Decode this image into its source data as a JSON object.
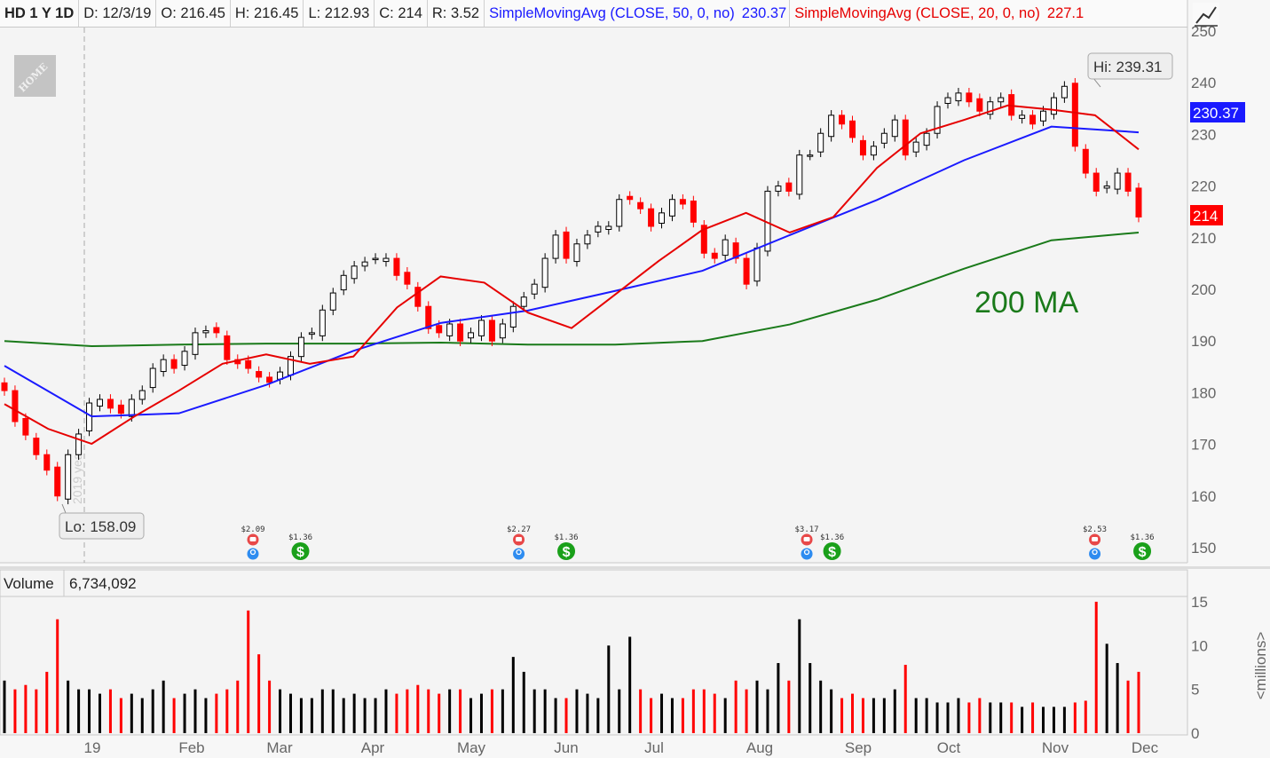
{
  "header": {
    "symbol": "HD 1 Y 1D",
    "date": "D: 12/3/19",
    "open": "O: 216.45",
    "high": "H: 216.45",
    "low": "L: 212.93",
    "close": "C: 214",
    "range": "R: 3.52",
    "sma50_label": "SimpleMovingAvg (CLOSE, 50, 0, no)",
    "sma50_value": "230.37",
    "sma20_label": "SimpleMovingAvg (CLOSE, 20, 0, no)",
    "sma20_value": "227.1"
  },
  "logo_text": "THE HOME DEPOT",
  "chart_data": [
    {
      "type": "candlestick",
      "symbol": "HD",
      "period": "1 Y",
      "interval": "1D",
      "x_range": [
        "2018-12-04",
        "2019-12-03"
      ],
      "ylim": [
        150,
        250
      ],
      "y_ticks": [
        150,
        160,
        170,
        180,
        190,
        200,
        210,
        220,
        230,
        240,
        250
      ],
      "x_tick_labels": [
        "19",
        "Feb",
        "Mar",
        "Apr",
        "May",
        "Jun",
        "Jul",
        "Aug",
        "Sep",
        "Oct",
        "Nov",
        "Dec"
      ],
      "grid": false,
      "close": [
        180.4,
        174.4,
        171.8,
        168,
        165,
        160,
        168,
        172,
        178,
        178.7,
        177,
        176,
        178.7,
        180.4,
        184.7,
        186.4,
        184.7,
        188,
        191.6,
        192,
        191.6,
        186.4,
        185.6,
        184.7,
        183,
        182,
        184,
        187,
        190.7,
        191.6,
        196,
        199.3,
        202.7,
        204.5,
        205.3,
        206,
        206,
        202.7,
        201,
        196.7,
        192.4,
        191.6,
        193.3,
        190,
        191.6,
        194,
        190,
        193.3,
        196.7,
        198.5,
        201,
        206,
        210.5,
        206,
        208.8,
        210.5,
        212.2,
        212.2,
        217.4,
        217.4,
        215.6,
        212.2,
        214.8,
        217.4,
        216.5,
        213,
        207,
        206,
        209.6,
        206,
        201,
        208,
        219,
        220,
        219,
        226,
        226,
        230.2,
        233.7,
        232,
        229.4,
        226,
        227.7,
        230.2,
        232.8,
        226,
        228.5,
        230.2,
        235.4,
        237.1,
        238,
        236.3,
        234.5,
        236.3,
        237.1,
        233.7,
        233.7,
        232,
        234.5,
        237.1,
        239.3,
        227.7,
        222.5,
        219,
        220,
        222.5,
        219,
        214
      ],
      "series": [
        {
          "name": "SimpleMovingAvg (CLOSE, 50, 0, no)",
          "color": "#1a1aff",
          "values": [
            185.2,
            175.4,
            176,
            181.5,
            188.1,
            193.5,
            195.9,
            199.7,
            203.6,
            210.5,
            217.3,
            225,
            231.5,
            230.4
          ]
        },
        {
          "name": "SimpleMovingAvg (CLOSE, 20, 0, no)",
          "color": "#e60000",
          "values": [
            177.8,
            173,
            170.1,
            175.5,
            180.4,
            185.6,
            187.4,
            185.6,
            187,
            196.5,
            202.5,
            201.3,
            195.5,
            192.5,
            199,
            205.5,
            211.5,
            214.8,
            211,
            214,
            223.5,
            230.2,
            232.8,
            235.6,
            234.8,
            233.7,
            227.1
          ]
        },
        {
          "name": "200 MA",
          "color": "#1a7a1a",
          "values": [
            190,
            189,
            189.3,
            189.5,
            189.5,
            189.7,
            189.3,
            189.3,
            190,
            193.2,
            198,
            204,
            209.5,
            211
          ]
        }
      ],
      "annotations": {
        "high": "Hi: 239.31",
        "low": "Lo: 158.09",
        "ma200": "200 MA",
        "year_marker": "2019 year",
        "last_sma50": "230.37",
        "last_close": "214"
      },
      "events": [
        {
          "type": "earnings",
          "date": "2019-02-26",
          "label": "$2.09"
        },
        {
          "type": "dividend",
          "date": "2019-03-13",
          "label": "$1.36"
        },
        {
          "type": "earnings",
          "date": "2019-05-21",
          "label": "$2.27"
        },
        {
          "type": "dividend",
          "date": "2019-06-05",
          "label": "$1.36"
        },
        {
          "type": "earnings",
          "date": "2019-08-20",
          "label": "$3.17"
        },
        {
          "type": "dividend",
          "date": "2019-08-28",
          "label": "$1.36"
        },
        {
          "type": "earnings",
          "date": "2019-11-19",
          "label": "$2.53"
        },
        {
          "type": "dividend",
          "date": "2019-12-04",
          "label": "$1.36"
        }
      ],
      "colors": {
        "up": "#000000",
        "down": "#ff0000",
        "sma50": "#1a1aff",
        "sma20": "#e60000",
        "ma200": "#1a7a1a"
      }
    },
    {
      "type": "bar",
      "title": "Volume",
      "current": "6,734,092",
      "unit_label": "<millions>",
      "ylim": [
        0,
        15
      ],
      "y_ticks": [
        0,
        5,
        10,
        15
      ],
      "values": [
        6,
        5,
        5.5,
        5,
        7,
        13,
        6,
        5,
        5,
        4.5,
        5,
        4,
        4.5,
        4,
        5,
        6,
        4,
        4.5,
        5,
        4,
        4.5,
        5,
        6,
        14,
        9,
        6,
        5,
        4.5,
        4,
        4,
        5,
        5,
        4,
        4.5,
        4,
        4,
        5,
        4.5,
        5,
        5.5,
        5,
        4.5,
        5,
        5,
        4,
        4.5,
        5,
        5,
        8.7,
        7,
        5,
        5,
        4,
        4,
        5,
        4.5,
        4,
        10,
        5,
        11,
        5,
        4,
        4.5,
        4,
        4,
        5,
        5,
        4.5,
        4,
        6,
        5,
        6,
        5,
        8,
        6,
        13,
        8,
        6,
        5,
        4,
        4.5,
        4,
        4,
        4,
        5,
        7.8,
        4,
        4,
        3.5,
        3.5,
        4,
        3.5,
        4,
        3.5,
        3.5,
        3.5,
        3,
        3.5,
        3,
        3,
        3,
        3.5,
        3.7,
        15,
        10.2,
        8,
        6,
        7
      ]
    }
  ]
}
